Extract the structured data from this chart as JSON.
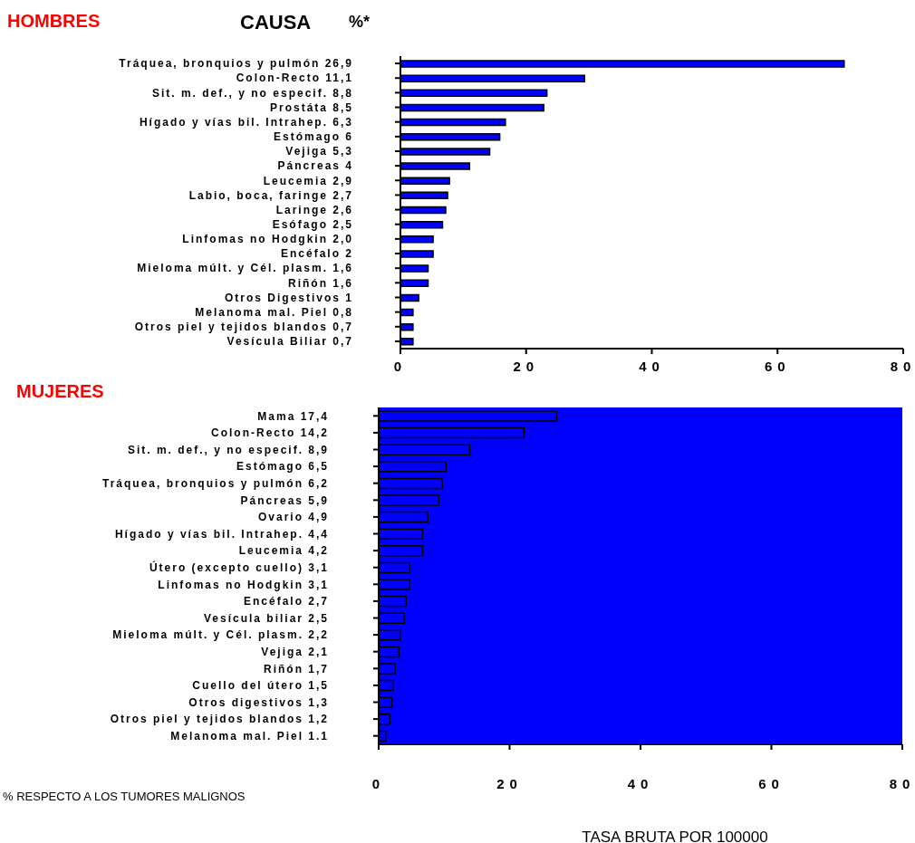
{
  "chart_data": [
    {
      "type": "bar",
      "orientation": "horizontal",
      "title": "HOMBRES",
      "annotations": [
        "CAUSA",
        "%*"
      ],
      "categories": [
        "Tráquea, bronquios y pulmón  26,9",
        "Colon-Recto 11,1",
        "Sit. m. def.,  y  no especif.  8,8",
        "Prostáta  8,5",
        "Hígado y vías bil. Intrahep.  6,3",
        "Estómago  6",
        "Vejiga  5,3",
        "Páncreas 4",
        "Leucemia  2,9",
        "Labio, boca, faringe  2,7",
        "Laringe  2,6",
        "Esófago  2,5",
        "Linfomas no Hodgkin  2,0",
        "Encéfalo  2",
        "Mieloma múlt. y Cél. plasm.  1,6",
        "Riñón  1,6",
        "Otros Digestivos  1",
        "Melanoma mal. Piel  0,8",
        "Otros piel y tejidos blandos  0,7",
        "Vesícula Biliar  0,7"
      ],
      "series": [
        {
          "color": "#0000ff",
          "values": [
            70.6,
            29.3,
            23.3,
            22.8,
            16.7,
            15.8,
            14.2,
            11.0,
            7.8,
            7.5,
            7.2,
            6.7,
            5.2,
            5.2,
            4.4,
            4.4,
            2.9,
            2.0,
            2.0,
            2.0
          ]
        }
      ],
      "xlim": [
        0,
        80
      ],
      "xticks": [
        0,
        20,
        40,
        60,
        80
      ],
      "grid": false,
      "legend": false
    },
    {
      "type": "bar",
      "orientation": "horizontal",
      "title": "MUJERES",
      "xlabel": "TASA BRUTA POR 100000",
      "annotations": [
        "% RESPECTO A LOS TUMORES MALIGNOS"
      ],
      "categories": [
        "Mama  17,4",
        "Colon-Recto 14,2",
        "Sit. m. def.,  y no especif.  8,9",
        "Estómago  6,5",
        "Tráquea, bronquios y pulmón  6,2",
        "Páncreas  5,9",
        "Ovario  4,9",
        "Hígado y vías bil. Intrahep.  4,4",
        "Leucemia  4,2",
        "Útero (excepto cuello)  3,1",
        "Linfomas no Hodgkin  3,1",
        "Encéfalo  2,7",
        "Vesícula biliar  2,5",
        "Mieloma múlt. y Cél. plasm.  2,2",
        "Vejiga  2,1",
        "Riñón  1,7",
        "Cuello del útero  1,5",
        "Otros digestivos 1,3",
        "Otros piel y tejidos blandos  1,2",
        "Melanoma mal. Piel 1.1"
      ],
      "series": [
        {
          "color": "#0000ff",
          "values": [
            27.2,
            22.2,
            13.9,
            10.3,
            9.7,
            9.2,
            7.5,
            6.7,
            6.7,
            4.7,
            4.7,
            4.2,
            3.9,
            3.3,
            3.1,
            2.5,
            2.2,
            2.0,
            1.7,
            1.1
          ]
        }
      ],
      "xlim": [
        0,
        80
      ],
      "xticks": [
        0,
        20,
        40,
        60,
        80
      ],
      "grid": false,
      "legend": false
    }
  ]
}
